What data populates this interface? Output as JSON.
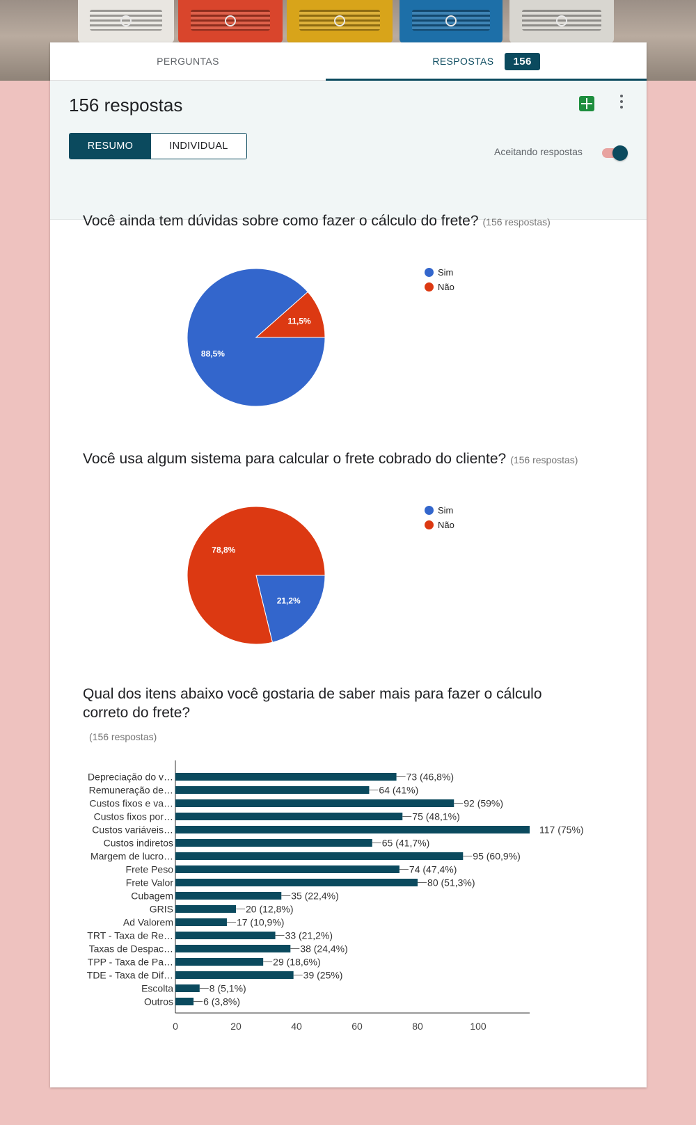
{
  "tabs": {
    "questions_label": "PERGUNTAS",
    "responses_label": "RESPOSTAS",
    "responses_count": "156"
  },
  "summary": {
    "title": "156 respostas",
    "view_summary_label": "RESUMO",
    "view_individual_label": "INDIVIDUAL",
    "accepting_label": "Aceitando respostas",
    "accepting_on": true
  },
  "colors": {
    "accent": "#0b4a5e",
    "pie_blue": "#3366cc",
    "pie_red": "#dc3912",
    "bar": "#0b4a5e",
    "sheets_green": "#1e8e3e"
  },
  "icons": [
    "sheets-icon",
    "more-vert-icon"
  ],
  "questions": [
    {
      "title": "Você ainda tem dúvidas sobre como fazer o cálculo do frete?",
      "count_label": "(156 respostas)"
    },
    {
      "title": "Você usa algum sistema para calcular o frete cobrado do cliente?",
      "count_label": "(156 respostas)"
    },
    {
      "title_line1": "Qual dos itens abaixo você gostaria de saber mais para fazer o cálculo",
      "title_line2": "correto do frete?",
      "count_label": "(156 respostas)"
    }
  ],
  "chart_data": [
    {
      "type": "pie",
      "labels": [
        "Sim",
        "Não"
      ],
      "values": [
        88.5,
        11.5
      ],
      "value_labels": [
        "88,5%",
        "11,5%"
      ],
      "colors": [
        "#3366cc",
        "#dc3912"
      ],
      "legend_position": "right"
    },
    {
      "type": "pie",
      "labels": [
        "Sim",
        "Não"
      ],
      "values": [
        21.2,
        78.8
      ],
      "value_labels": [
        "21,2%",
        "78,8%"
      ],
      "colors": [
        "#3366cc",
        "#dc3912"
      ],
      "legend_position": "right"
    },
    {
      "type": "bar",
      "orientation": "horizontal",
      "categories": [
        "Depreciação do v…",
        "Remuneração de…",
        "Custos fixos e va…",
        "Custos fixos por…",
        "Custos variáveis…",
        "Custos indiretos",
        "Margem de lucro…",
        "Frete Peso",
        "Frete Valor",
        "Cubagem",
        "GRIS",
        "Ad Valorem",
        "TRT - Taxa de Re…",
        "Taxas de Despac…",
        "TPP - Taxa de Pa…",
        "TDE - Taxa de Dif…",
        "Escolta",
        "Outros"
      ],
      "values": [
        73,
        64,
        92,
        75,
        117,
        65,
        95,
        74,
        80,
        35,
        20,
        17,
        33,
        38,
        29,
        39,
        8,
        6
      ],
      "data_labels": [
        "73 (46,8%)",
        "64 (41%)",
        "92 (59%)",
        "75 (48,1%)",
        "117 (75%)",
        "65 (41,7%)",
        "95 (60,9%)",
        "74 (47,4%)",
        "80 (51,3%)",
        "35 (22,4%)",
        "20 (12,8%)",
        "17 (10,9%)",
        "33 (21,2%)",
        "38 (24,4%)",
        "29 (18,6%)",
        "39 (25%)",
        "8 (5,1%)",
        "6 (3,8%)"
      ],
      "xticks": [
        0,
        20,
        40,
        60,
        80,
        100
      ],
      "xlim": [
        0,
        117
      ]
    }
  ]
}
